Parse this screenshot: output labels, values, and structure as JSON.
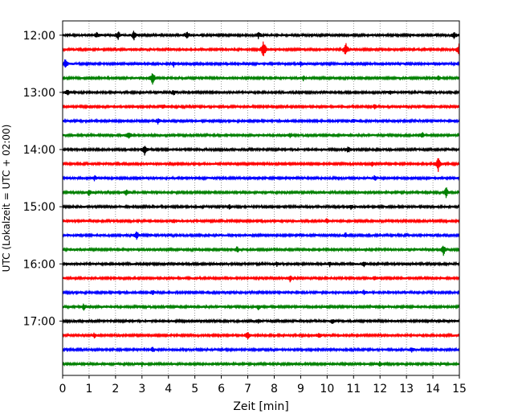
{
  "chart_data": {
    "type": "line",
    "title": "",
    "xlabel": "Zeit  [min]",
    "ylabel": "UTC (Lokalzeit = UTC + 02:00)",
    "xlim": [
      0,
      15
    ],
    "x_ticks": [
      0,
      1,
      2,
      3,
      4,
      5,
      6,
      7,
      8,
      9,
      10,
      11,
      12,
      13,
      14,
      15
    ],
    "y_ticks": [
      "12:00",
      "13:00",
      "14:00",
      "15:00",
      "16:00",
      "17:00"
    ],
    "ylim": [
      "11:45",
      "17:57"
    ],
    "grid": "vertical dotted at each minute",
    "legend": "none",
    "trace_interval_min": 15,
    "colors_cycle": [
      "#000000",
      "#ff0000",
      "#0000ff",
      "#008000"
    ],
    "series": [
      {
        "start": "12:00",
        "color": "#000000",
        "events": [
          [
            1.3,
            4
          ],
          [
            2.1,
            5
          ],
          [
            2.7,
            6
          ],
          [
            4.7,
            5
          ],
          [
            7.4,
            4
          ],
          [
            14.8,
            5
          ]
        ]
      },
      {
        "start": "12:15",
        "color": "#ff0000",
        "events": [
          [
            7.6,
            12
          ],
          [
            10.7,
            9
          ],
          [
            15.0,
            11
          ]
        ]
      },
      {
        "start": "12:30",
        "color": "#0000ff",
        "events": [
          [
            0.1,
            6
          ],
          [
            4.2,
            3
          ],
          [
            9.0,
            3
          ]
        ]
      },
      {
        "start": "12:45",
        "color": "#008000",
        "events": [
          [
            3.4,
            9
          ],
          [
            9.1,
            3
          ],
          [
            14.2,
            3
          ]
        ]
      },
      {
        "start": "13:00",
        "color": "#000000",
        "events": [
          [
            0.2,
            4
          ],
          [
            4.2,
            3
          ],
          [
            12.4,
            3
          ]
        ]
      },
      {
        "start": "13:15",
        "color": "#ff0000",
        "events": [
          [
            3.8,
            3
          ],
          [
            11.8,
            3
          ]
        ]
      },
      {
        "start": "13:30",
        "color": "#0000ff",
        "events": [
          [
            3.6,
            3
          ],
          [
            11.0,
            3
          ]
        ]
      },
      {
        "start": "13:45",
        "color": "#008000",
        "events": [
          [
            2.5,
            5
          ],
          [
            8.6,
            3
          ],
          [
            13.6,
            3
          ]
        ]
      },
      {
        "start": "14:00",
        "color": "#000000",
        "events": [
          [
            3.1,
            6
          ],
          [
            10.8,
            4
          ]
        ]
      },
      {
        "start": "14:15",
        "color": "#ff0000",
        "events": [
          [
            11.7,
            3
          ],
          [
            14.2,
            9
          ]
        ]
      },
      {
        "start": "14:30",
        "color": "#0000ff",
        "events": [
          [
            1.2,
            3
          ],
          [
            11.8,
            3
          ]
        ]
      },
      {
        "start": "14:45",
        "color": "#008000",
        "events": [
          [
            1.0,
            4
          ],
          [
            2.4,
            4
          ],
          [
            14.5,
            7
          ]
        ]
      },
      {
        "start": "15:00",
        "color": "#000000",
        "events": [
          [
            6.3,
            3
          ],
          [
            10.9,
            3
          ]
        ]
      },
      {
        "start": "15:15",
        "color": "#ff0000",
        "events": [
          [
            4.2,
            3
          ],
          [
            10.0,
            3
          ]
        ]
      },
      {
        "start": "15:30",
        "color": "#0000ff",
        "events": [
          [
            2.8,
            6
          ],
          [
            10.7,
            3
          ]
        ]
      },
      {
        "start": "15:45",
        "color": "#008000",
        "events": [
          [
            6.6,
            4
          ],
          [
            14.4,
            8
          ]
        ]
      },
      {
        "start": "16:00",
        "color": "#000000",
        "events": [
          [
            8.1,
            3
          ],
          [
            10.1,
            3
          ],
          [
            11.4,
            3
          ]
        ]
      },
      {
        "start": "16:15",
        "color": "#ff0000",
        "events": [
          [
            8.6,
            4
          ],
          [
            11.8,
            3
          ]
        ]
      },
      {
        "start": "16:30",
        "color": "#0000ff",
        "events": [
          [
            3.4,
            3
          ],
          [
            11.4,
            3
          ]
        ]
      },
      {
        "start": "16:45",
        "color": "#008000",
        "events": [
          [
            0.8,
            4
          ],
          [
            7.4,
            3
          ]
        ]
      },
      {
        "start": "17:00",
        "color": "#000000",
        "events": [
          [
            7.4,
            3
          ],
          [
            10.2,
            3
          ]
        ]
      },
      {
        "start": "17:15",
        "color": "#ff0000",
        "events": [
          [
            1.2,
            3
          ],
          [
            7.0,
            5
          ],
          [
            9.7,
            3
          ]
        ]
      },
      {
        "start": "17:30",
        "color": "#0000ff",
        "events": [
          [
            3.4,
            3
          ],
          [
            13.2,
            3
          ]
        ]
      },
      {
        "start": "17:45",
        "color": "#008000",
        "events": [
          [
            3.0,
            3
          ],
          [
            12.0,
            3
          ]
        ]
      }
    ]
  }
}
